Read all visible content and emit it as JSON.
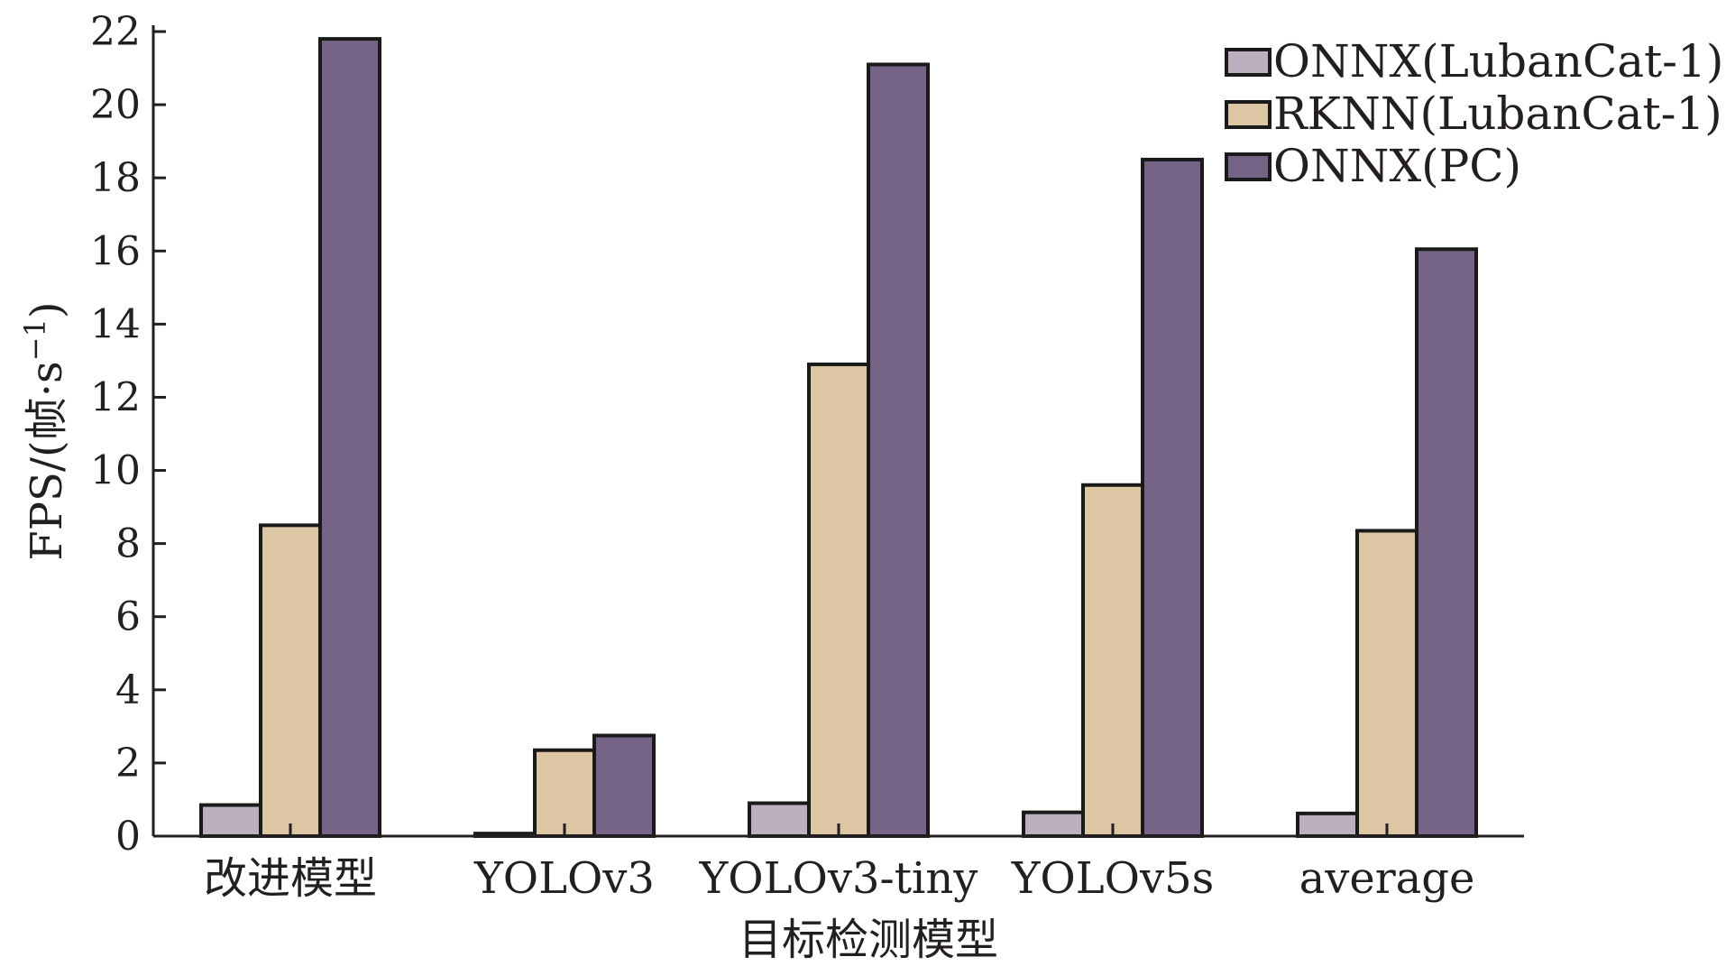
{
  "chart_data": {
    "type": "bar",
    "categories": [
      "改进模型",
      "YOLOv3",
      "YOLOv3-tiny",
      "YOLOv5s",
      "average"
    ],
    "series": [
      {
        "name": "ONNX(LubanCat-1)",
        "color": "#bcb0c0",
        "values": [
          0.85,
          0.07,
          0.9,
          0.65,
          0.62
        ]
      },
      {
        "name": "RKNN(LubanCat-1)",
        "color": "#dcc6a4",
        "values": [
          8.5,
          2.35,
          12.9,
          9.6,
          8.35
        ]
      },
      {
        "name": "ONNX(PC)",
        "color": "#756486",
        "values": [
          21.8,
          2.75,
          21.1,
          18.5,
          16.05
        ]
      }
    ],
    "xlabel": "目标检测模型",
    "ylabel": "FPS/(帧·s",
    "ylabel_superscript": "−1",
    "ylabel_close": ")",
    "ylim": [
      0,
      22
    ],
    "yticks": [
      "0",
      "2",
      "4",
      "6",
      "8",
      "10",
      "12",
      "14",
      "16",
      "18",
      "20",
      "22"
    ],
    "grid": false,
    "legend_position": "top-right"
  }
}
